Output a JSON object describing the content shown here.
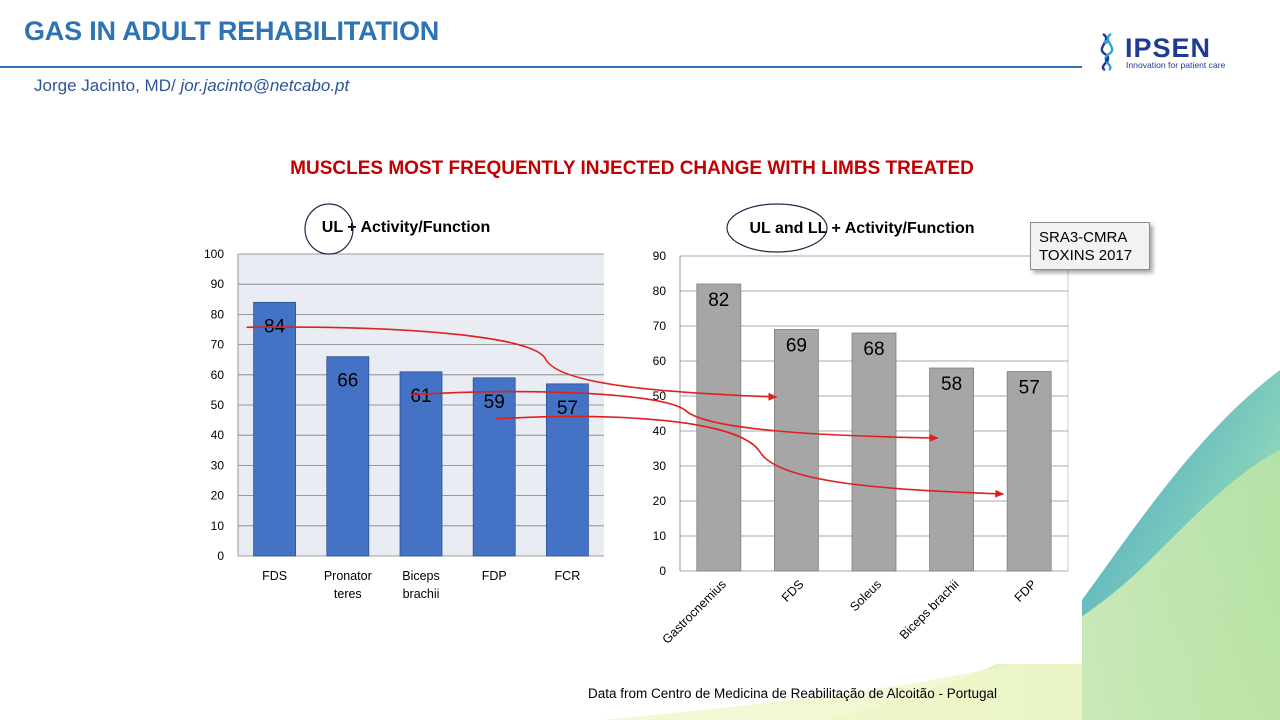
{
  "header": {
    "title": "GAS IN ADULT REHABILITATION",
    "author_prefix": "Jorge Jacinto, MD/ ",
    "author_email": "jor.jacinto@netcabo.pt",
    "logo_text": "IPSEN",
    "logo_tagline": "Innovation for patient care"
  },
  "subtitle": "MUSCLES MOST FREQUENTLY INJECTED CHANGE WITH LIMBS TREATED",
  "citation": {
    "line1": "SRA3-CMRA",
    "line2": "TOXINS  2017"
  },
  "footnote": "Data from Centro de Medicina de Reabilitação de Alcoitão - Portugal",
  "colors": {
    "title": "#2e74b5",
    "subtitle": "#c00000",
    "bar_left": "#4472c4",
    "bar_right": "#a6a6a6",
    "plot_bg": "#eaecf4",
    "arrow": "#e02020"
  },
  "chart_data": [
    {
      "type": "bar",
      "title": "UL + Activity/Function",
      "categories": [
        "FDS",
        "Pronator teres",
        "Biceps brachii",
        "FDP",
        "FCR"
      ],
      "category_lines": [
        [
          "FDS"
        ],
        [
          "Pronator",
          "teres"
        ],
        [
          "Biceps",
          "brachii"
        ],
        [
          "FDP"
        ],
        [
          "FCR"
        ]
      ],
      "values": [
        84,
        66,
        61,
        59,
        57
      ],
      "ylim": [
        0,
        100
      ],
      "yticks": [
        0,
        10,
        20,
        30,
        40,
        50,
        60,
        70,
        80,
        90,
        100
      ],
      "grid": true,
      "xlabel": "",
      "ylabel": ""
    },
    {
      "type": "bar",
      "title": "UL and LL + Activity/Function",
      "categories": [
        "Gastrocnemius",
        "FDS",
        "Soleus",
        "Biceps brachii",
        "FDP"
      ],
      "values": [
        82,
        69,
        68,
        58,
        57
      ],
      "ylim": [
        0,
        90
      ],
      "yticks": [
        0,
        10,
        20,
        30,
        40,
        50,
        60,
        70,
        80,
        90
      ],
      "grid": true,
      "xlabel": "",
      "ylabel": ""
    }
  ],
  "arrows": [
    {
      "from": "FDS",
      "to": "FDS"
    },
    {
      "from": "Biceps brachii",
      "to": "Biceps brachii"
    },
    {
      "from": "FDP",
      "to": "FDP"
    }
  ]
}
